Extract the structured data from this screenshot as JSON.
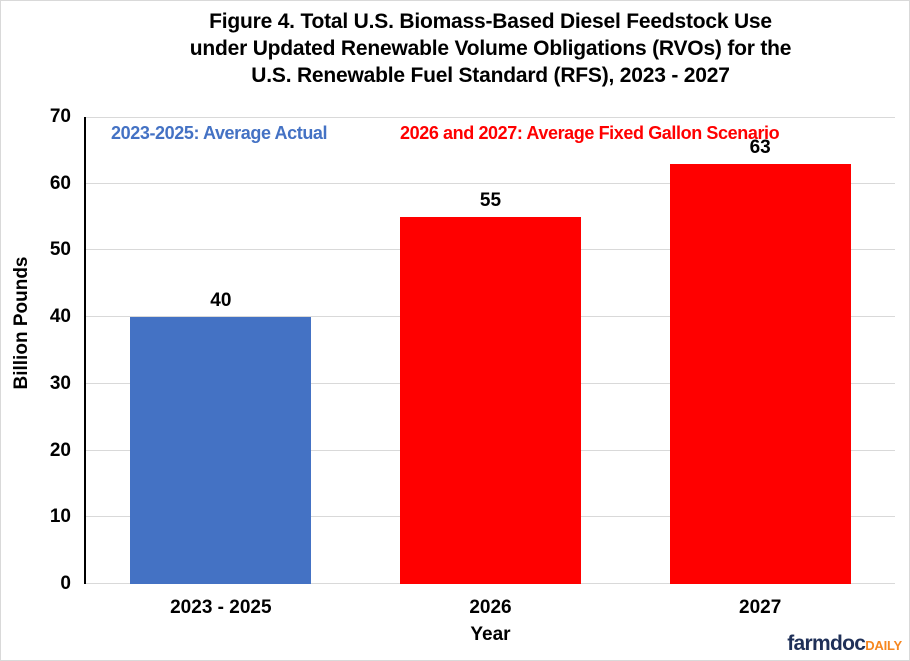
{
  "chart_data": {
    "type": "bar",
    "title": "Figure 4. Total U.S. Biomass-Based Diesel Feedstock Use\nunder Updated Renewable Volume Obligations (RVOs) for the\nU.S. Renewable Fuel Standard (RFS), 2023 - 2027",
    "categories": [
      "2023 - 2025",
      "2026",
      "2027"
    ],
    "values": [
      40,
      55,
      63
    ],
    "data_labels": [
      "40",
      "55",
      "63"
    ],
    "bar_colors": [
      "#4472C4",
      "#FF0000",
      "#FF0000"
    ],
    "xlabel": "Year",
    "ylabel": "Billion Pounds",
    "ylim": [
      0,
      70
    ],
    "yticks": [
      0,
      10,
      20,
      30,
      40,
      50,
      60,
      70
    ],
    "grid": "horizontal",
    "legend_position": "none",
    "annotations": [
      {
        "text": "2023-2025: Average Actual",
        "color": "#4472C4"
      },
      {
        "text": "2026 and 2027: Average Fixed Gallon Scenario",
        "color": "#FF0000"
      }
    ]
  },
  "branding": {
    "name": "farmdoc",
    "suffix": "DAILY",
    "name_color": "#1F3058",
    "suffix_color": "#F6871F"
  },
  "colors": {
    "background": "#FFFFFF",
    "border": "#D9D9D9",
    "gridline": "#D9D9D9",
    "axis_line": "#000000",
    "text": "#000000"
  }
}
